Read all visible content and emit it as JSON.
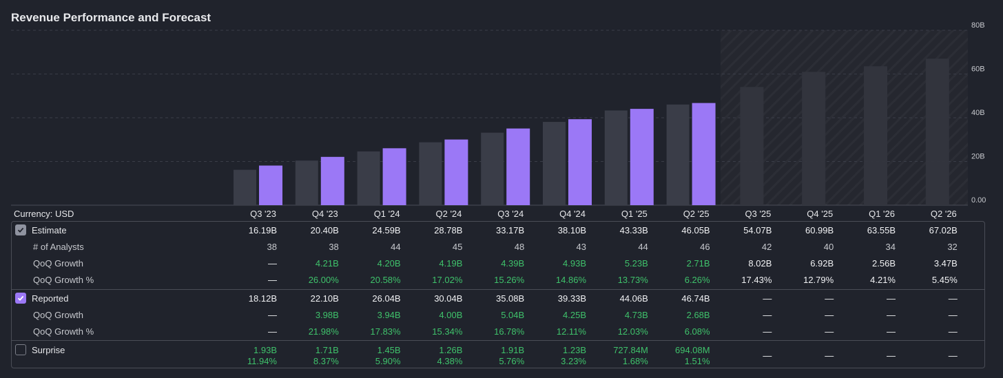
{
  "title": "Revenue Performance and Forecast",
  "currency_label": "Currency: USD",
  "colors": {
    "background": "#20232c",
    "estimate_bar": "#3a3d48",
    "reported_bar": "#9b78f6",
    "forecast_bar": "#33353e",
    "grid": "#3a3d48",
    "green": "#3fc26b"
  },
  "chart_data": {
    "type": "bar",
    "title": "Revenue Performance and Forecast",
    "categories": [
      "Q3 '23",
      "Q4 '23",
      "Q1 '24",
      "Q2 '24",
      "Q3 '24",
      "Q4 '24",
      "Q1 '25",
      "Q2 '25",
      "Q3 '25",
      "Q4 '25",
      "Q1 '26",
      "Q2 '26"
    ],
    "series": [
      {
        "name": "Estimate",
        "values": [
          16.19,
          20.4,
          24.59,
          28.78,
          33.17,
          38.1,
          43.33,
          46.05,
          54.07,
          60.99,
          63.55,
          67.02
        ]
      },
      {
        "name": "Reported",
        "values": [
          18.12,
          22.1,
          26.04,
          30.04,
          35.08,
          39.33,
          44.06,
          46.74,
          null,
          null,
          null,
          null
        ]
      }
    ],
    "forecast_start_index": 8,
    "yticks": [
      "0.00",
      "20B",
      "40B",
      "60B",
      "80B"
    ],
    "ylim": [
      0,
      80
    ],
    "unit": "B USD"
  },
  "rows": {
    "estimate": {
      "label": "Estimate",
      "values": [
        "16.19B",
        "20.40B",
        "24.59B",
        "28.78B",
        "33.17B",
        "38.10B",
        "43.33B",
        "46.05B",
        "54.07B",
        "60.99B",
        "63.55B",
        "67.02B"
      ]
    },
    "analysts": {
      "label": "# of Analysts",
      "values": [
        "38",
        "38",
        "44",
        "45",
        "48",
        "43",
        "44",
        "46",
        "42",
        "40",
        "34",
        "32"
      ]
    },
    "est_qoq": {
      "label": "QoQ Growth",
      "values": [
        "—",
        "4.21B",
        "4.20B",
        "4.19B",
        "4.39B",
        "4.93B",
        "5.23B",
        "2.71B",
        "8.02B",
        "6.92B",
        "2.56B",
        "3.47B"
      ]
    },
    "est_qoq_pct": {
      "label": "QoQ Growth %",
      "values": [
        "—",
        "26.00%",
        "20.58%",
        "17.02%",
        "15.26%",
        "14.86%",
        "13.73%",
        "6.26%",
        "17.43%",
        "12.79%",
        "4.21%",
        "5.45%"
      ]
    },
    "reported": {
      "label": "Reported",
      "values": [
        "18.12B",
        "22.10B",
        "26.04B",
        "30.04B",
        "35.08B",
        "39.33B",
        "44.06B",
        "46.74B",
        "—",
        "—",
        "—",
        "—"
      ]
    },
    "rep_qoq": {
      "label": "QoQ Growth",
      "values": [
        "—",
        "3.98B",
        "3.94B",
        "4.00B",
        "5.04B",
        "4.25B",
        "4.73B",
        "2.68B",
        "—",
        "—",
        "—",
        "—"
      ]
    },
    "rep_qoq_pct": {
      "label": "QoQ Growth %",
      "values": [
        "—",
        "21.98%",
        "17.83%",
        "15.34%",
        "16.78%",
        "12.11%",
        "12.03%",
        "6.08%",
        "—",
        "—",
        "—",
        "—"
      ]
    },
    "surprise": {
      "label": "Surprise",
      "values": [
        "1.93B",
        "1.71B",
        "1.45B",
        "1.26B",
        "1.91B",
        "1.23B",
        "727.84M",
        "694.08M",
        "—",
        "—",
        "—",
        "—"
      ],
      "pcts": [
        "11.94%",
        "8.37%",
        "5.90%",
        "4.38%",
        "5.76%",
        "3.23%",
        "1.68%",
        "1.51%",
        "",
        "",
        "",
        ""
      ]
    }
  }
}
